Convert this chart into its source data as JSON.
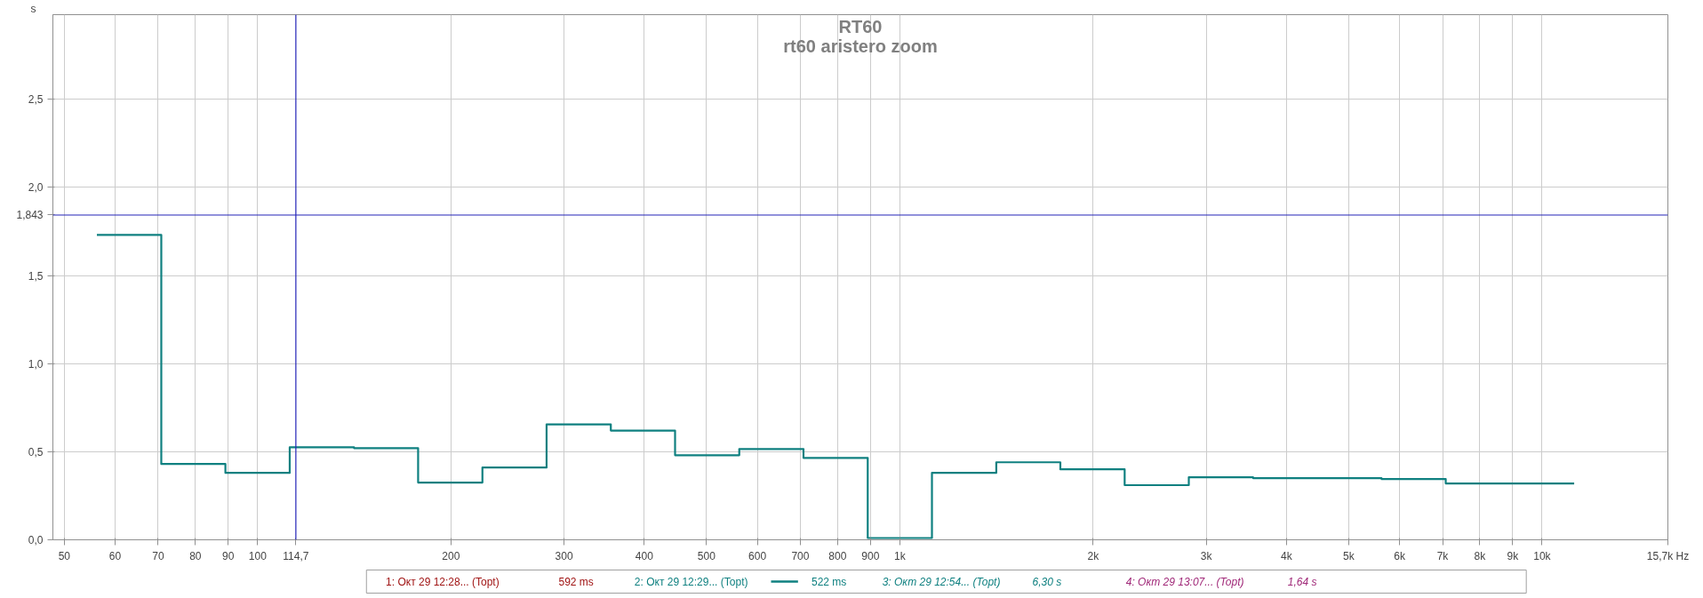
{
  "chart_data": {
    "type": "step",
    "title": "RT60",
    "subtitle": "rt60 aristero zoom",
    "ylabel": "s",
    "x": [
      56.2,
      70.8,
      89.1,
      112.2,
      141.3,
      177.8,
      223.9,
      281.8,
      354.8,
      446.7,
      562.3,
      707.9,
      891.3,
      1122,
      1413,
      1778,
      2239,
      2818,
      3548,
      4467,
      5623,
      7079,
      8913,
      11220
    ],
    "series": [
      {
        "name": "2: Окт 29 12:29... (Topt)",
        "color": "#0f8080",
        "values": [
          1.73,
          0.43,
          0.38,
          0.525,
          0.52,
          0.325,
          0.41,
          0.655,
          0.62,
          0.48,
          0.515,
          0.465,
          0.01,
          0.38,
          0.44,
          0.4,
          0.31,
          0.355,
          0.35,
          0.35,
          0.345,
          0.32,
          0.32,
          0.32
        ]
      }
    ],
    "xlim": [
      48,
      15700
    ],
    "ylim": [
      0,
      2.98
    ],
    "log": "x",
    "grid": true,
    "legend": "bottom",
    "xticks": [
      50,
      60,
      70,
      80,
      90,
      100,
      200,
      300,
      400,
      500,
      600,
      700,
      800,
      900,
      {
        "value": 1000,
        "label": "1k"
      },
      {
        "value": 2000,
        "label": "2k"
      },
      {
        "value": 3000,
        "label": "3k"
      },
      {
        "value": 4000,
        "label": "4k"
      },
      {
        "value": 5000,
        "label": "5k"
      },
      {
        "value": 6000,
        "label": "6k"
      },
      {
        "value": 7000,
        "label": "7k"
      },
      {
        "value": 8000,
        "label": "8k"
      },
      {
        "value": 9000,
        "label": "9k"
      },
      {
        "value": 10000,
        "label": "10k"
      },
      {
        "value": 15700,
        "label": "15,7k Hz"
      }
    ],
    "yticks": [
      {
        "value": 0,
        "label": "0,0"
      },
      {
        "value": 0.5,
        "label": "0,5"
      },
      {
        "value": 1,
        "label": "1,0"
      },
      {
        "value": 1.5,
        "label": "1,5"
      },
      {
        "value": 2,
        "label": "2,0"
      },
      {
        "value": 2.5,
        "label": "2,5"
      }
    ],
    "ref_lines": [
      {
        "axis": "y",
        "value": 1.843,
        "label": "1,843",
        "color": "#2424b8"
      },
      {
        "axis": "x",
        "value": 114.7,
        "label": "114,7",
        "color": "#2424b8"
      }
    ],
    "annotations": [
      "1: Окт 29 12:28... (Topt)",
      "592 ms",
      "522 ms",
      "3: Окт 29 12:54... (Topt)",
      "6,30 s",
      "4: Окт 29 13:07... (Topt)",
      "1,64 s"
    ]
  }
}
